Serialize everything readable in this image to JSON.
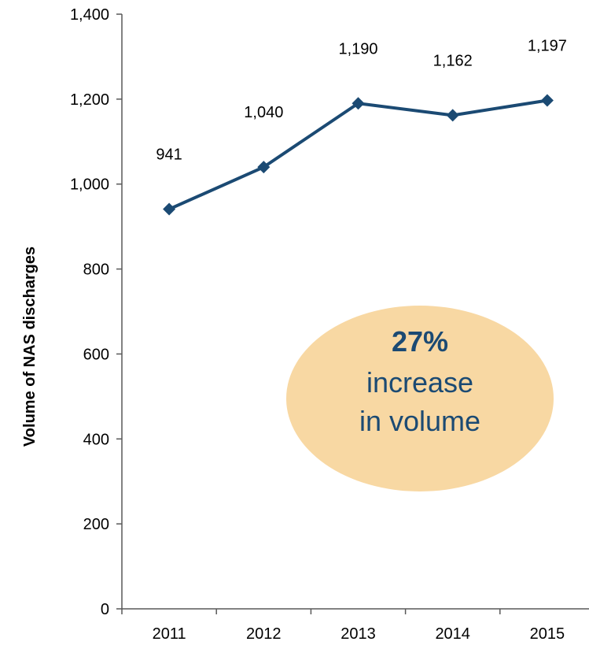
{
  "chart_data": {
    "type": "line",
    "categories": [
      "2011",
      "2012",
      "2013",
      "2014",
      "2015"
    ],
    "values": [
      941,
      1040,
      1190,
      1162,
      1197
    ],
    "data_labels": [
      "941",
      "1,040",
      "1,190",
      "1,162",
      "1,197"
    ],
    "ylabel": "Volume of NAS discharges",
    "xlabel": "",
    "ylim": [
      0,
      1400
    ],
    "yticks": [
      0,
      200,
      400,
      600,
      800,
      1000,
      1200,
      1400
    ],
    "ytick_labels": [
      "0",
      "200",
      "400",
      "600",
      "800",
      "1,000",
      "1,200",
      "1,400"
    ],
    "grid": false,
    "legend": "none",
    "line_color": "#1b4a73",
    "marker": "diamond",
    "annotation": {
      "line1": "27%",
      "line2": "increase",
      "line3": "in volume",
      "fill_color": "#f8d8a3",
      "text_color": "#1b4a73"
    }
  }
}
